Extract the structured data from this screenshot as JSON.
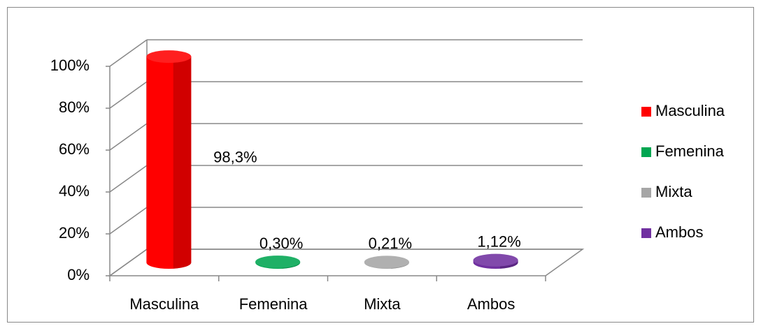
{
  "chart_data": {
    "type": "bar",
    "categories": [
      "Masculina",
      "Femenina",
      "Mixta",
      "Ambos"
    ],
    "values": [
      98.3,
      0.3,
      0.21,
      1.12
    ],
    "value_labels": [
      "98,3%",
      "0,30%",
      "0,21%",
      "1,12%"
    ],
    "colors": [
      "#ff0000",
      "#00a651",
      "#a6a6a6",
      "#7030a0"
    ],
    "ylim": [
      0,
      100
    ],
    "yticks": [
      {
        "value": 0,
        "label": "0%"
      },
      {
        "value": 20,
        "label": "20%"
      },
      {
        "value": 40,
        "label": "40%"
      },
      {
        "value": 60,
        "label": "60%"
      },
      {
        "value": 80,
        "label": "80%"
      },
      {
        "value": 100,
        "label": "100%"
      }
    ],
    "grid": true,
    "legend": "right"
  }
}
